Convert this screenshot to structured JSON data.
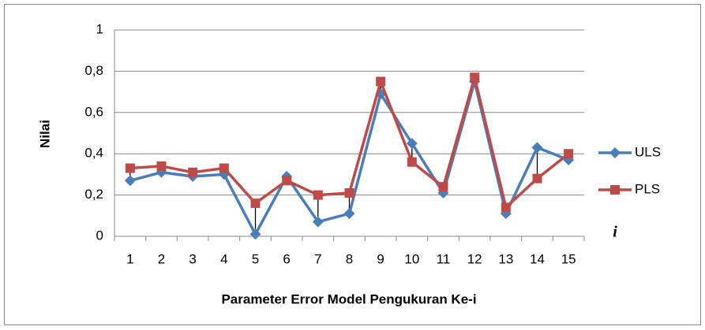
{
  "chart_data": {
    "type": "line",
    "y_label": "Nilai",
    "x_label": "Parameter Error Model Pengukuran Ke-i",
    "annotations": [
      "i"
    ],
    "categories": [
      "1",
      "2",
      "3",
      "4",
      "5",
      "6",
      "7",
      "8",
      "9",
      "10",
      "11",
      "12",
      "13",
      "14",
      "15"
    ],
    "series": [
      {
        "name": "ULS",
        "color": "#4a7ebb",
        "marker": "diamond",
        "values": [
          0.27,
          0.31,
          0.29,
          0.3,
          0.01,
          0.29,
          0.07,
          0.11,
          0.69,
          0.45,
          0.21,
          0.75,
          0.11,
          0.43,
          0.37
        ]
      },
      {
        "name": "PLS",
        "color": "#be4b48",
        "marker": "square",
        "values": [
          0.33,
          0.34,
          0.31,
          0.33,
          0.16,
          0.27,
          0.2,
          0.21,
          0.75,
          0.36,
          0.24,
          0.77,
          0.14,
          0.28,
          0.4
        ]
      }
    ],
    "high_low_lines": true,
    "ylim": [
      0,
      1
    ],
    "yticks": [
      0,
      {
        "value": 0.2,
        "label": "0,2"
      },
      {
        "value": 0.4,
        "label": "0,4"
      },
      {
        "value": 0.6,
        "label": "0,6"
      },
      {
        "value": 0.8,
        "label": "0,8"
      },
      1
    ],
    "grid": true,
    "legend": "right"
  }
}
